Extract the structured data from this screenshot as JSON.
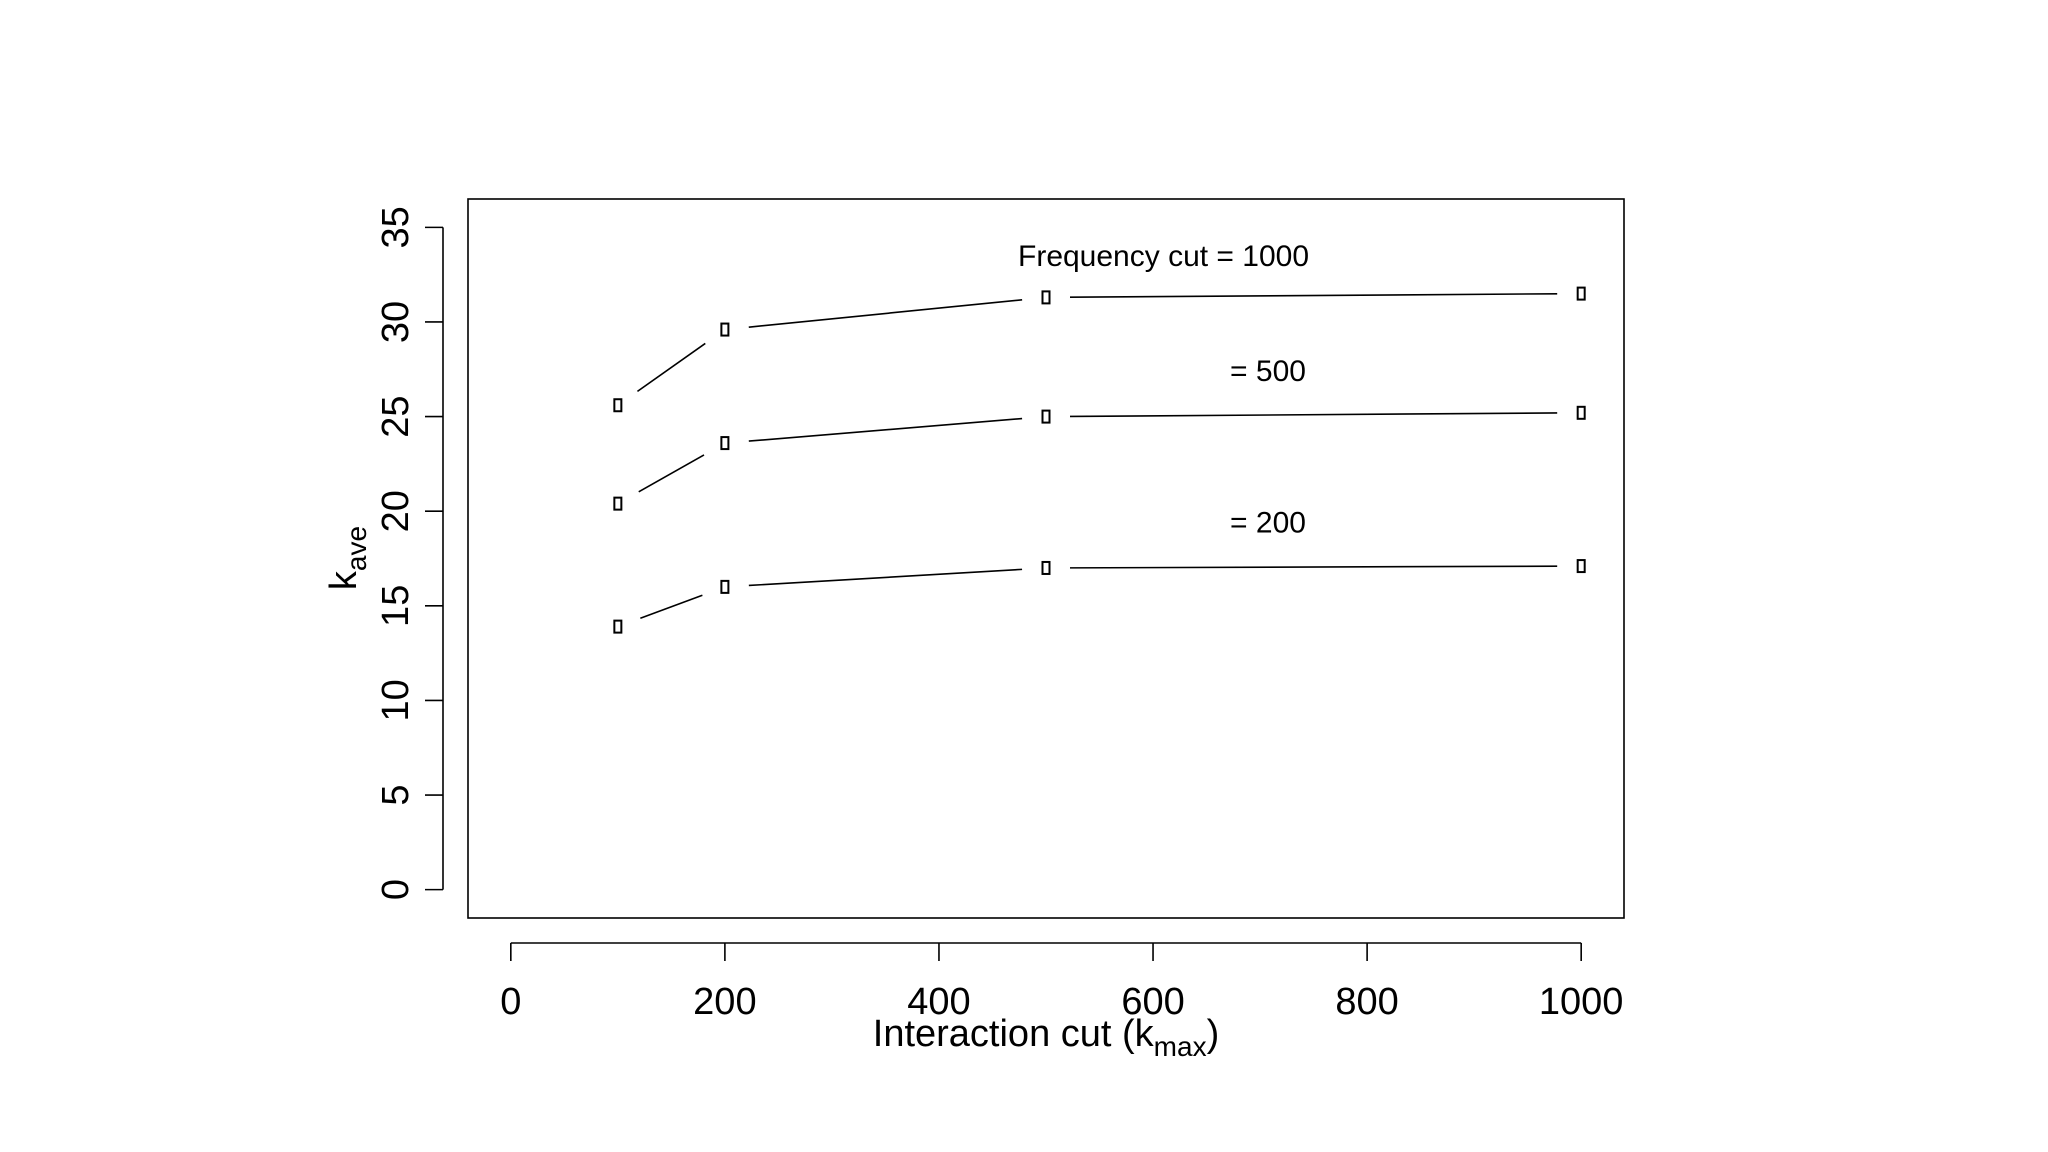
{
  "chart_data": {
    "type": "line",
    "title": "",
    "xlabel": {
      "main": "Interaction cut (k",
      "sub": "max",
      "tail": ")"
    },
    "ylabel": {
      "main": "k",
      "sub": "ave"
    },
    "xlim": [
      -40,
      1040
    ],
    "ylim": [
      -1.5,
      36.5
    ],
    "xticks": [
      "0",
      "200",
      "400",
      "600",
      "800",
      "1000"
    ],
    "yticks": [
      "0",
      "5",
      "10",
      "15",
      "20",
      "25",
      "30",
      "35"
    ],
    "grid": false,
    "legend": "none",
    "x": [
      100,
      200,
      500,
      1000
    ],
    "series": [
      {
        "label": "Frequency cut = 1000",
        "values": [
          25.6,
          29.6,
          31.3,
          31.5
        ]
      },
      {
        "label": "= 500",
        "values": [
          20.4,
          23.6,
          25.0,
          25.2
        ]
      },
      {
        "label": "= 200",
        "values": [
          13.9,
          16.0,
          17.0,
          17.1
        ]
      }
    ]
  }
}
